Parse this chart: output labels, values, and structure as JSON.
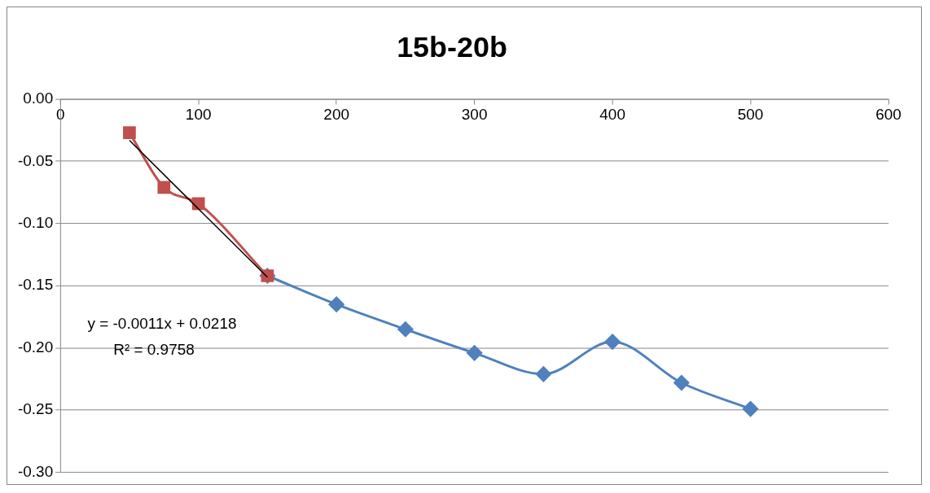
{
  "chart_data": {
    "type": "line",
    "title": "15b-20b",
    "series": [
      {
        "color": "#4f81bd",
        "marker": "diamond",
        "x": [
          150,
          200,
          250,
          300,
          350,
          400,
          450,
          500
        ],
        "values": [
          -0.142,
          -0.165,
          -0.185,
          -0.204,
          -0.221,
          -0.195,
          -0.228,
          -0.249
        ]
      },
      {
        "color": "#c0504d",
        "marker": "square",
        "x": [
          50,
          75,
          100,
          150
        ],
        "values": [
          -0.027,
          -0.071,
          -0.084,
          -0.142
        ]
      },
      {
        "color": "#000000",
        "marker": "none",
        "x": [
          50,
          150
        ],
        "values": [
          -0.0332,
          -0.1432
        ]
      }
    ],
    "annotations": [
      "y = -0.0011x + 0.0218",
      "R² = 0.9758"
    ],
    "xlim": [
      0,
      600
    ],
    "xticks": [
      0,
      100,
      200,
      300,
      400,
      500,
      600
    ],
    "ylim": [
      -0.3,
      0
    ],
    "yticks": [
      {
        "value": 0,
        "label": "0.00"
      },
      {
        "value": -0.05,
        "label": "-0.05"
      },
      {
        "value": -0.1,
        "label": "-0.10"
      },
      {
        "value": -0.15,
        "label": "-0.15"
      },
      {
        "value": -0.2,
        "label": "-0.20"
      },
      {
        "value": -0.25,
        "label": "-0.25"
      },
      {
        "value": -0.3,
        "label": "-0.30"
      }
    ],
    "grid": "y",
    "legend": false
  }
}
